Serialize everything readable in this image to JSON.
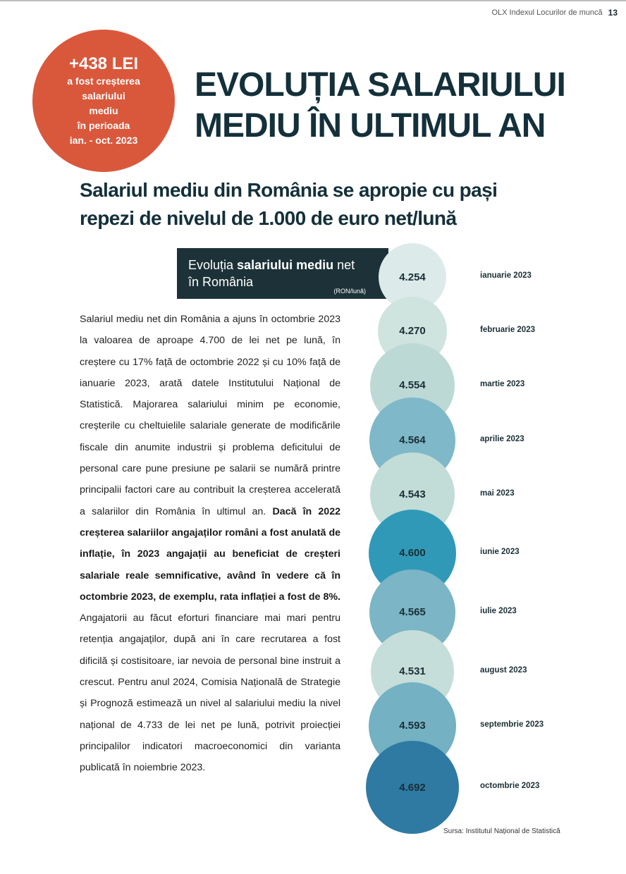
{
  "header": {
    "doc_title": "OLX Indexul Locurilor de muncă",
    "page_number": "13"
  },
  "badge": {
    "amount": "+438 LEI",
    "line1": "a fost creșterea salariului",
    "line2": "mediu",
    "line3": "în perioada",
    "line4": "ian. - oct. 2023"
  },
  "title": {
    "line1": "EVOLUȚIA SALARIULUI",
    "line2": "MEDIU ÎN ULTIMUL AN"
  },
  "subtitle": {
    "line1": "Salariul mediu din România se apropie cu pași",
    "line2": "repezi de nivelul de 1.000 de euro net/lună"
  },
  "chart_box": {
    "prefix": "Evoluția ",
    "bold": "salariului mediu",
    "suffix": " net",
    "line2": "în România",
    "unit": "(RON/lună)"
  },
  "body": {
    "p1": "Salariul mediu net din România a ajuns în octombrie 2023 la valoarea de aproape 4.700 de lei net pe lună, în creștere cu 17% față de octombrie 2022 și cu 10% față de ianuarie 2023, arată datele Institutului Național de Statistică. Majorarea salariului minim pe economie, creșterile cu cheltuielile salariale generate de modificările fiscale din anumite industrii și problema deficitului de personal care pune presiune pe salarii se numără printre principalii factori care au contribuit la creșterea accelerată a salariilor din România în ultimul an. ",
    "bold": "Dacă în 2022 creșterea salariilor angajaților români a fost anulată de inflație, în 2023 angajații au beneficiat de creșteri salariale reale semnificative, având în vedere că în octombrie 2023, de exemplu, rata inflației a fost de 8%.",
    "p2": " Angajatorii au făcut eforturi financiare mai mari pentru retenția angajaților, după ani în care recrutarea a fost dificilă și costisi­toare, iar nevoia de personal bine instruit a crescut. Pentru anul 2024, Comisia Națională de Strategie și Prognoză estimează un nivel al salariului mediu la nivel național de 4.733 de lei net pe lună, potrivit proiecției principalilor indicatori macroeconomici din varianta publicată în noiembrie 2023."
  },
  "chart_data": {
    "type": "bubble",
    "title": "Evoluția salariului mediu net în România",
    "unit": "RON/lună",
    "categories": [
      "ianuarie 2023",
      "februarie 2023",
      "martie 2023",
      "aprilie 2023",
      "mai 2023",
      "iunie 2023",
      "iulie 2023",
      "august 2023",
      "septembrie 2023",
      "octombrie 2023"
    ],
    "values": [
      4254,
      4270,
      4554,
      4564,
      4543,
      4600,
      4565,
      4531,
      4593,
      4692
    ],
    "labels": [
      "4.254",
      "4.270",
      "4.554",
      "4.564",
      "4.543",
      "4.600",
      "4.565",
      "4.531",
      "4.593",
      "4.692"
    ],
    "colors": [
      "#dcebea",
      "#cfe3df",
      "#bcd9d6",
      "#7fb8c8",
      "#c2dcd7",
      "#3199b8",
      "#7bb5c6",
      "#c6ded9",
      "#73b1c3",
      "#2e7aa3"
    ]
  },
  "source": "Sursa: Institutul Național de Statistică"
}
